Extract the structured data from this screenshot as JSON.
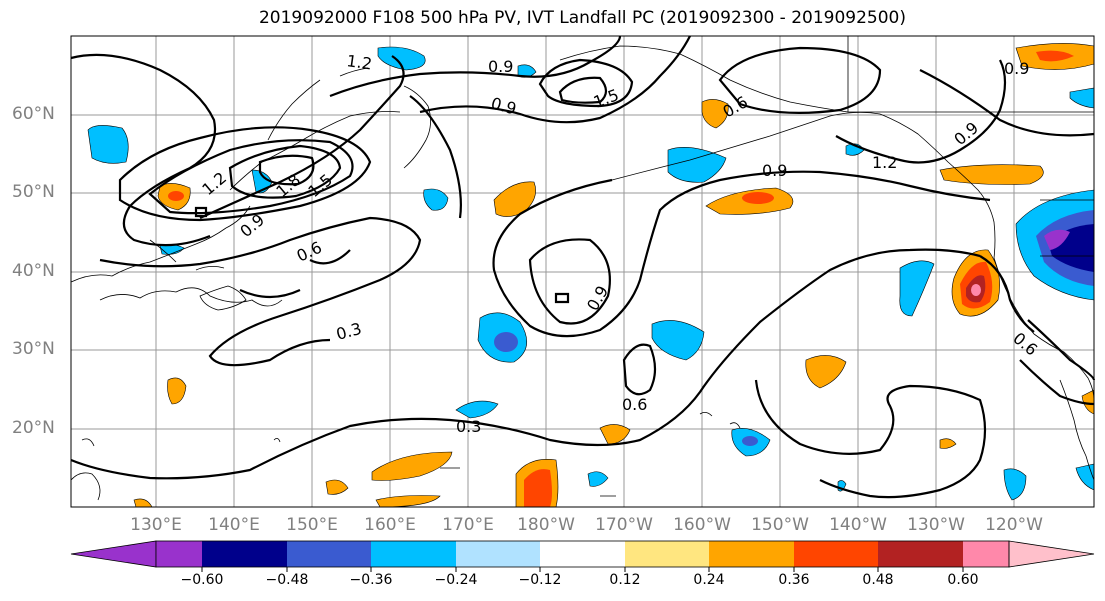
{
  "title": "2019092000 F108 500 hPa PV, IVT Landfall PC (2019092300 - 2019092500)",
  "lat_labels": [
    "60°N",
    "50°N",
    "40°N",
    "30°N",
    "20°N"
  ],
  "lon_labels": [
    "130°E",
    "140°E",
    "150°E",
    "160°E",
    "170°E",
    "180°W",
    "170°W",
    "160°W",
    "150°W",
    "140°W",
    "130°W",
    "120°W"
  ],
  "contour_labels": [
    "1.2",
    "0.9",
    "0.9",
    "1.5",
    "0.6",
    "0.9",
    "1.2",
    "0.9",
    "1.2",
    "1.8",
    "1.5",
    "0.9",
    "0.6",
    "0.3",
    "0.9",
    "0.6",
    "0.3",
    "0.6"
  ],
  "colorbar": {
    "ticks": [
      "−0.60",
      "−0.48",
      "−0.36",
      "−0.24",
      "−0.12",
      "0.12",
      "0.24",
      "0.36",
      "0.48",
      "0.60"
    ],
    "colors": [
      "#9932cc",
      "#00008b",
      "#3a5bd0",
      "#00bfff",
      "#b0e2ff",
      "#ffffff",
      "#ffe680",
      "#ffa500",
      "#ff4500",
      "#b22222",
      "#ff88aa",
      "#ffc0cb"
    ]
  }
}
